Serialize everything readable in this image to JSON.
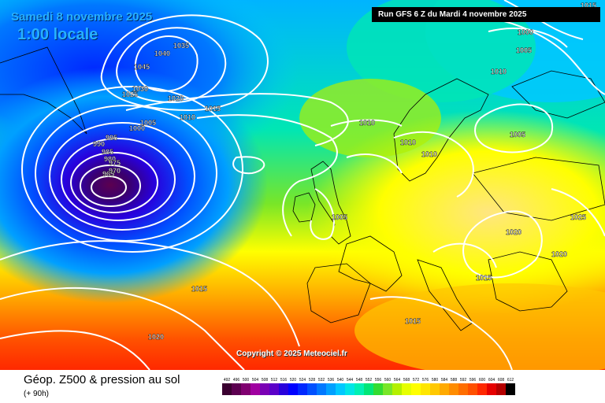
{
  "header": {
    "date": "Samedi 8 novembre 2025",
    "local_time": "1:00 locale",
    "run": "Run GFS 6 Z du Mardi 4 novembre 2025",
    "copyright": "Copyright © 2025 Meteociel.fr"
  },
  "footer": {
    "title": "Géop. Z500 & pression au sol",
    "subtitle": "(+ 90h)"
  },
  "legend": {
    "labels": [
      "492",
      "496",
      "500",
      "504",
      "508",
      "512",
      "516",
      "520",
      "524",
      "528",
      "532",
      "536",
      "540",
      "544",
      "548",
      "552",
      "556",
      "560",
      "564",
      "568",
      "572",
      "576",
      "580",
      "584",
      "588",
      "592",
      "596",
      "600",
      "604",
      "608",
      "612"
    ],
    "colors": [
      "#3a0030",
      "#5c0050",
      "#800070",
      "#a000a0",
      "#7a00b4",
      "#5a00c8",
      "#2800dc",
      "#0000ff",
      "#0028ff",
      "#0050ff",
      "#0078ff",
      "#00a0ff",
      "#00c8ff",
      "#00e6e6",
      "#00f0b4",
      "#00e678",
      "#32dc32",
      "#78e628",
      "#b4f000",
      "#e6ff00",
      "#ffff00",
      "#ffe600",
      "#ffc800",
      "#ffaa00",
      "#ff8c00",
      "#ff6e00",
      "#ff5000",
      "#ff2800",
      "#e60000",
      "#b40000",
      "#000000"
    ]
  },
  "pressure_labels": [
    "1015",
    "1035",
    "1040",
    "1045",
    "1030",
    "1025",
    "1020",
    "1015",
    "1010",
    "1005",
    "1000",
    "995",
    "990",
    "985",
    "980",
    "975",
    "970",
    "965",
    "1010",
    "1010",
    "1000",
    "1005",
    "1010",
    "1005",
    "1010",
    "1005",
    "1025",
    "1020",
    "1020",
    "1015",
    "1015",
    "1015",
    "1020"
  ]
}
